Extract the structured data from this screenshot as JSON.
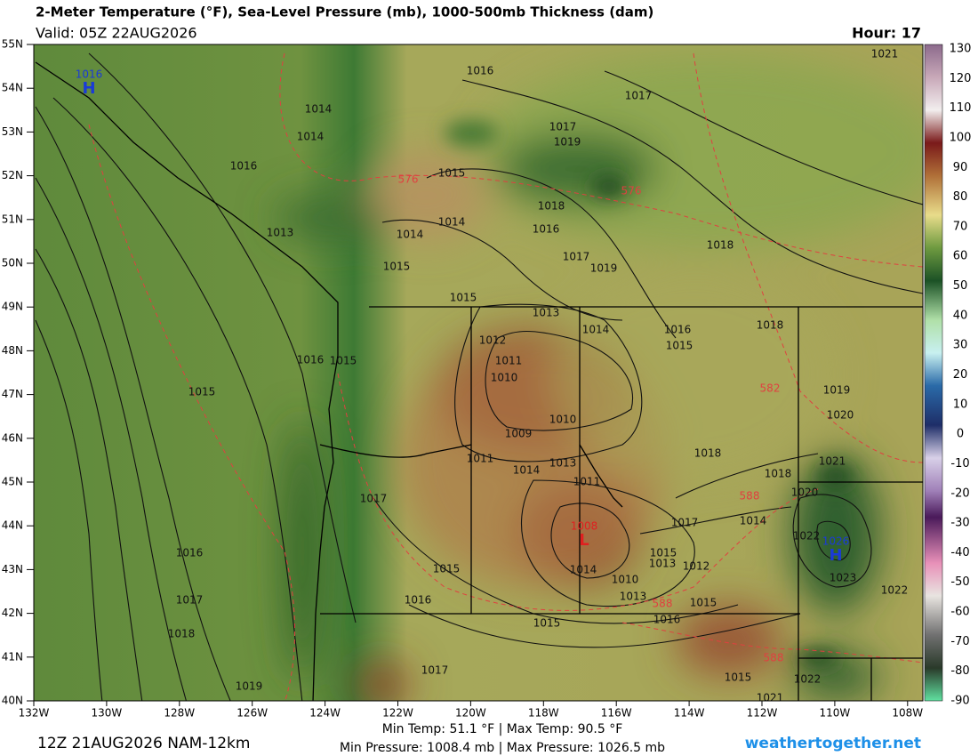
{
  "header": {
    "title": "2-Meter Temperature (°F), Sea-Level Pressure (mb), 1000-500mb Thickness (dam)",
    "valid": "Valid: 05Z 22AUG2026",
    "hour": "Hour: 17"
  },
  "lat_labels": [
    "55N",
    "54N",
    "53N",
    "52N",
    "51N",
    "50N",
    "49N",
    "48N",
    "47N",
    "46N",
    "45N",
    "44N",
    "43N",
    "42N",
    "41N",
    "40N"
  ],
  "lon_labels": [
    "132W",
    "130W",
    "128W",
    "126W",
    "124W",
    "122W",
    "120W",
    "118W",
    "116W",
    "114W",
    "112W",
    "110W",
    "108W"
  ],
  "colorbar_labels": [
    "130",
    "120",
    "110",
    "100",
    "90",
    "80",
    "70",
    "60",
    "50",
    "40",
    "30",
    "20",
    "10",
    "0",
    "-10",
    "-20",
    "-30",
    "-40",
    "-50",
    "-60",
    "-70",
    "-80",
    "-90"
  ],
  "pressure_centers": [
    {
      "symbol": "H",
      "pressure": "1016"
    },
    {
      "symbol": "L",
      "pressure": "1008"
    },
    {
      "symbol": "H",
      "pressure": "1026"
    }
  ],
  "contour_labels": [
    "1016",
    "1017",
    "1021",
    "1014",
    "1014",
    "1017",
    "1019",
    "1016",
    "1015",
    "576",
    "576",
    "1018",
    "1014",
    "1014",
    "1016",
    "1018",
    "1013",
    "1017",
    "1019",
    "1015",
    "1015",
    "1013",
    "1014",
    "1016",
    "1018",
    "1012",
    "1015",
    "1016",
    "1015",
    "1011",
    "1010",
    "582",
    "1019",
    "1015",
    "1010",
    "1020",
    "1009",
    "1018",
    "1011",
    "1014",
    "1013",
    "1018",
    "1021",
    "1011",
    "588",
    "1020",
    "1017",
    "1014",
    "1017",
    "1022",
    "1016",
    "1015",
    "1013",
    "1012",
    "1014",
    "1015",
    "1023",
    "1010",
    "1022",
    "1017",
    "1016",
    "1013",
    "588",
    "1015",
    "1016",
    "1015",
    "1018",
    "588",
    "1017",
    "1015",
    "1022",
    "1019",
    "1021"
  ],
  "footer": {
    "run": "12Z 21AUG2026 NAM-12km",
    "temps": "Min Temp:  51.1 °F | Max Temp:  90.5 °F",
    "pressures": "Min Pressure: 1008.4 mb | Max Pressure: 1026.5 mb",
    "site": "weathertogether.net"
  }
}
